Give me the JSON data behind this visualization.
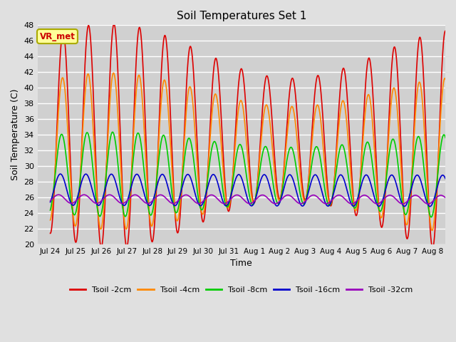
{
  "title": "Soil Temperatures Set 1",
  "xlabel": "Time",
  "ylabel": "Soil Temperature (C)",
  "ylim": [
    20,
    48
  ],
  "yticks": [
    20,
    22,
    24,
    26,
    28,
    30,
    32,
    34,
    36,
    38,
    40,
    42,
    44,
    46,
    48
  ],
  "background_color": "#e0e0e0",
  "plot_bg_color": "#d0d0d0",
  "grid_color": "#ffffff",
  "annotation_text": "VR_met",
  "annotation_bg": "#ffff99",
  "annotation_border": "#aaaa00",
  "series": [
    {
      "label": "Tsoil -2cm",
      "color": "#dd0000",
      "lw": 1.2
    },
    {
      "label": "Tsoil -4cm",
      "color": "#ff8800",
      "lw": 1.2
    },
    {
      "label": "Tsoil -8cm",
      "color": "#00cc00",
      "lw": 1.2
    },
    {
      "label": "Tsoil -16cm",
      "color": "#0000cc",
      "lw": 1.2
    },
    {
      "label": "Tsoil -32cm",
      "color": "#9900bb",
      "lw": 1.2
    }
  ],
  "n_days": 16,
  "pts_per_day": 144,
  "x_tick_labels": [
    "Jul 24",
    "Jul 25",
    "Jul 26",
    "Jul 27",
    "Jul 28",
    "Jul 29",
    "Jul 30",
    "Jul 31",
    "Aug 1",
    "Aug 2",
    "Aug 3",
    "Aug 4",
    "Aug 5",
    "Aug 6",
    "Aug 7",
    "Aug 8"
  ]
}
